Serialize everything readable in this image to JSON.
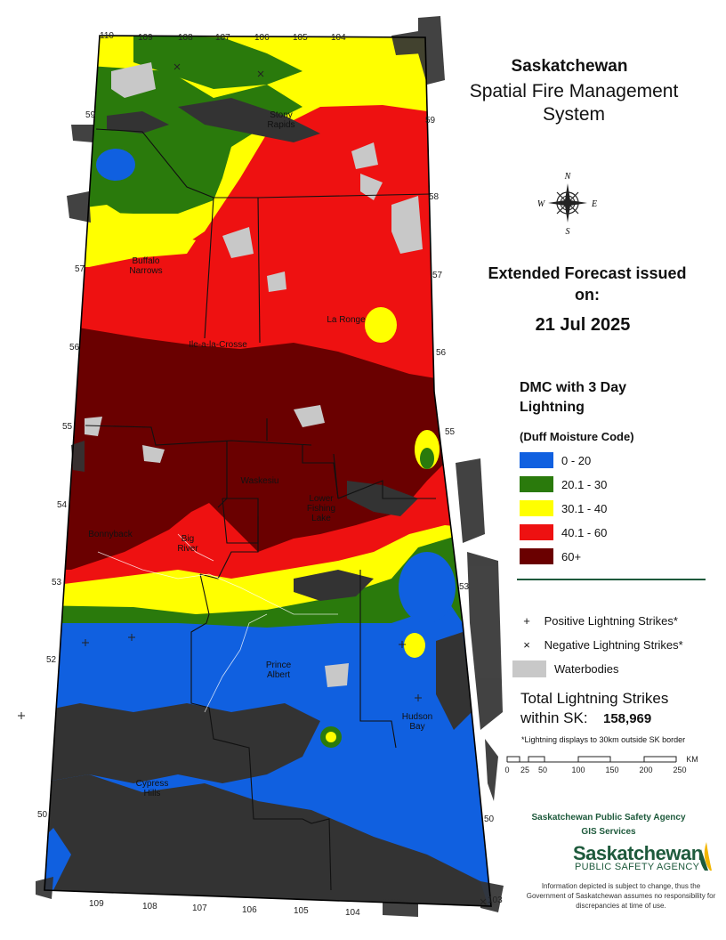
{
  "title": "Saskatchewan",
  "subtitle": "Spatial Fire Management System",
  "forecast": {
    "heading": "Extended Forecast issued on:",
    "date": "21 Jul 2025"
  },
  "legend": {
    "heading": "DMC with 3 Day Lightning",
    "subheading": "(Duff Moisture Code)",
    "classes": [
      {
        "label": "0 - 20",
        "color": "#1060e0"
      },
      {
        "label": "20.1 - 30",
        "color": "#2a7a0c"
      },
      {
        "label": "30.1 - 40",
        "color": "#ffff00"
      },
      {
        "label": "40.1 - 60",
        "color": "#ee1111"
      },
      {
        "label": "60+",
        "color": "#6a0000"
      }
    ],
    "positive_symbol": "+",
    "positive_label": "Positive Lightning Strikes*",
    "negative_symbol": "×",
    "negative_label": "Negative Lightning Strikes*",
    "waterbodies_label": "Waterbodies",
    "waterbodies_color": "#c8c8c8",
    "lightning_color": "#333333"
  },
  "totals": {
    "line1": "Total Lightning Strikes",
    "line2": "within SK:",
    "count": "158,969",
    "note": "*Lightning displays to 30km outside SK border"
  },
  "scale": {
    "ticks": [
      "0",
      "25",
      "50",
      "100",
      "150",
      "200",
      "250"
    ],
    "unit": "KM"
  },
  "map": {
    "lon_labels_top": [
      "110",
      "109",
      "108",
      "107",
      "106",
      "105",
      "104"
    ],
    "lon_labels_bottom": [
      "109",
      "108",
      "107",
      "106",
      "105",
      "104",
      "103"
    ],
    "lat_labels_left": [
      "59",
      "57",
      "56",
      "55",
      "54",
      "53",
      "52",
      "50"
    ],
    "lat_labels_right": [
      "59",
      "58",
      "57",
      "56",
      "55",
      "53",
      "50"
    ],
    "places": {
      "stony_rapids": "Stony Rapids",
      "buffalo_narrows": "Buffalo Narrows",
      "ile_a_la_crosse": "Ile-a-la-Crosse",
      "la_ronge": "La Ronge",
      "waskesiu": "Waskesiu",
      "lower_fishing_lake": "Lower Fishing Lake",
      "bonnybank": "Bonnyback",
      "big_river": "Big River",
      "prince_albert": "Prince Albert",
      "hudson_bay": "Hudson Bay",
      "cypress_hills": "Cypress Hills"
    }
  },
  "compass": {
    "n": "N",
    "s": "S",
    "e": "E",
    "w": "W"
  },
  "agency": {
    "line1": "Saskatchewan Public Safety Agency",
    "line2": "GIS Services",
    "logo_main": "Saskatchewan",
    "logo_sub": "PUBLIC SAFETY AGENCY"
  },
  "disclaimer": "Information depicted is subject to change, thus the Government of Saskatchewan assumes no responsibility for discrepancies at time of use."
}
